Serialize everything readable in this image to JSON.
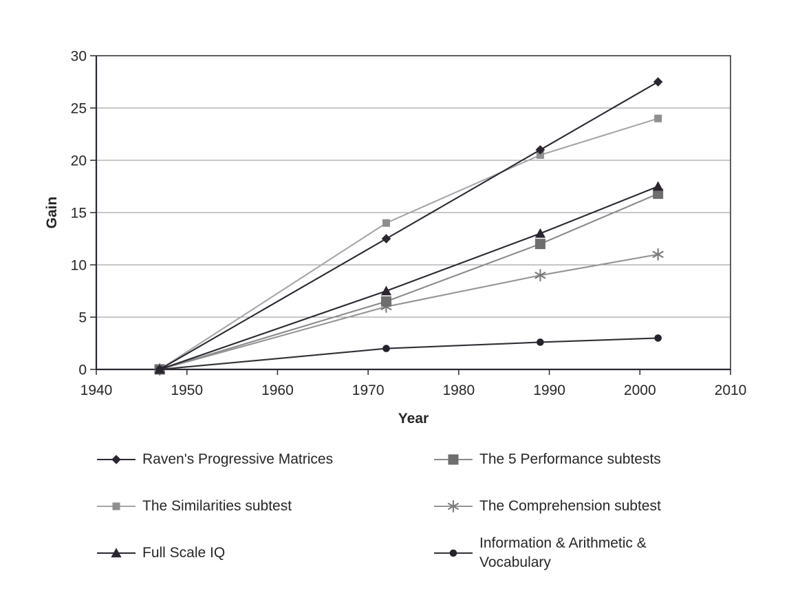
{
  "chart_data": {
    "type": "line",
    "title": "",
    "xlabel": "Year",
    "ylabel": "Gain",
    "x": [
      1947,
      1972,
      1989,
      2002
    ],
    "xlim": [
      1940,
      2010
    ],
    "ylim": [
      0,
      30
    ],
    "x_ticks": [
      1940,
      1950,
      1960,
      1970,
      1980,
      1990,
      2000,
      2010
    ],
    "y_ticks": [
      0,
      5,
      10,
      15,
      20,
      25,
      30
    ],
    "grid": "horizontal-gridlines",
    "legend_position": "below-two-columns",
    "colors": {
      "dark_series": "#2b2630",
      "gridline": "#8f8f8f",
      "text": "#262626"
    },
    "series": [
      {
        "name": "Raven's Progressive Matrices",
        "marker": "diamond",
        "line_color": "#2b2630",
        "marker_color": "#2b2630",
        "values": [
          0,
          12.5,
          21,
          27.5
        ]
      },
      {
        "name": "The Similarities subtest",
        "marker": "square-small",
        "line_color": "#a6a6a6",
        "marker_color": "#8f8f8f",
        "values": [
          0,
          14,
          20.5,
          24
        ]
      },
      {
        "name": "Full Scale IQ",
        "marker": "triangle",
        "line_color": "#2b2630",
        "marker_color": "#2b2630",
        "values": [
          0,
          7.5,
          13,
          17.5
        ]
      },
      {
        "name": "The 5 Performance subtests",
        "marker": "square-large",
        "line_color": "#8a8a8a",
        "marker_color": "#6e6e6e",
        "values": [
          0,
          6.5,
          12,
          16.8
        ]
      },
      {
        "name": "The Comprehension subtest",
        "marker": "asterisk",
        "line_color": "#949494",
        "marker_color": "#7a7a7a",
        "values": [
          0,
          6,
          9,
          11
        ]
      },
      {
        "name": "Information & Arithmetic & Vocabulary",
        "marker": "circle",
        "line_color": "#323036",
        "marker_color": "#26222c",
        "values": [
          0,
          2,
          2.6,
          3
        ]
      }
    ]
  },
  "legend": {
    "left": [
      {
        "series": 0,
        "label": "Raven's Progressive Matrices"
      },
      {
        "series": 1,
        "label": "The Similarities subtest"
      },
      {
        "series": 2,
        "label": "Full Scale IQ"
      }
    ],
    "right": [
      {
        "series": 3,
        "label": "The 5 Performance subtests"
      },
      {
        "series": 4,
        "label": "The Comprehension subtest"
      },
      {
        "series": 5,
        "label": "Information & Arithmetic & Vocabulary",
        "line1": "Information & Arithmetic &",
        "line2": "Vocabulary"
      }
    ]
  }
}
